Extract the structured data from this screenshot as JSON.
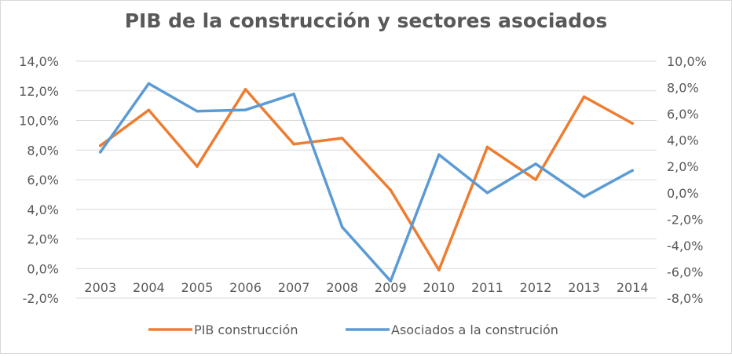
{
  "chart_data": {
    "type": "line",
    "title": "PIB de la construcción y sectores asociados",
    "categories": [
      "2003",
      "2004",
      "2005",
      "2006",
      "2007",
      "2008",
      "2009",
      "2010",
      "2011",
      "2012",
      "2013",
      "2014"
    ],
    "y_left": {
      "min": -2,
      "max": 14,
      "step": 2,
      "tick_labels": [
        "-2,0%",
        "0,0%",
        "2,0%",
        "4,0%",
        "6,0%",
        "8,0%",
        "10,0%",
        "12,0%",
        "14,0%"
      ]
    },
    "y_right": {
      "min": -8,
      "max": 10,
      "step": 2,
      "tick_labels": [
        "-8,0%",
        "-6,0%",
        "-4,0%",
        "-2,0%",
        "0,0%",
        "2,0%",
        "4,0%",
        "6,0%",
        "8,0%",
        "10,0%"
      ]
    },
    "grid": true,
    "legend_position": "bottom",
    "series": [
      {
        "name": "PIB construcción",
        "axis": "left",
        "color": "#ED7D31",
        "values": [
          8.3,
          10.7,
          6.9,
          12.1,
          8.4,
          8.8,
          5.3,
          -0.1,
          8.2,
          6.0,
          11.6,
          9.8
        ]
      },
      {
        "name": "Asociados a la construción",
        "axis": "right",
        "color": "#5B9BD5",
        "values": [
          3.1,
          8.3,
          6.2,
          6.3,
          7.5,
          -2.6,
          -6.7,
          2.9,
          0.0,
          2.2,
          -0.3,
          1.7
        ]
      }
    ]
  }
}
